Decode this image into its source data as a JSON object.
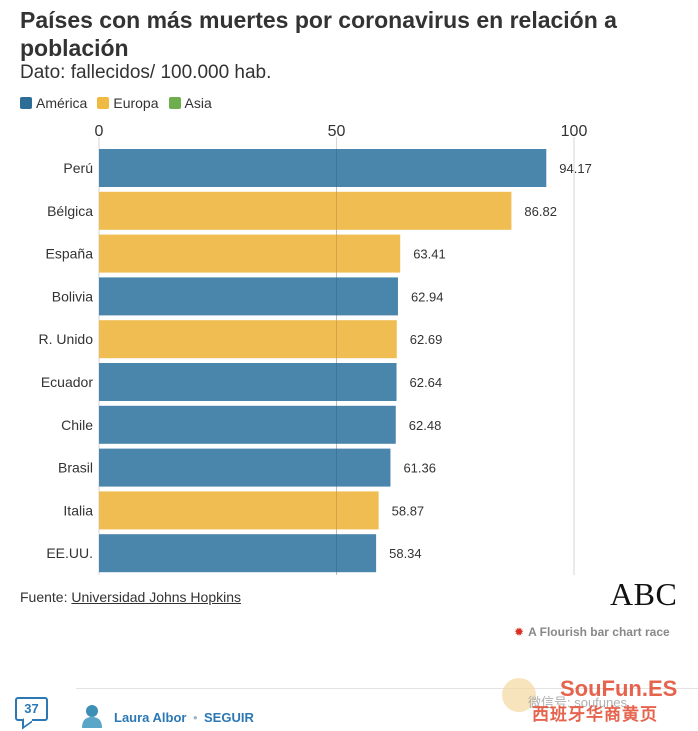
{
  "title": "Países con más muertes por coronavirus en relación a población",
  "subtitle": "Dato: fallecidos/ 100.000 hab.",
  "legend": [
    {
      "label": "América",
      "color": "#2e6d97"
    },
    {
      "label": "Europa",
      "color": "#f0b942"
    },
    {
      "label": "Asia",
      "color": "#6fae4e"
    }
  ],
  "chart_data": {
    "type": "bar",
    "orientation": "horizontal",
    "categories": [
      "Perú",
      "Bélgica",
      "España",
      "Bolivia",
      "R. Unido",
      "Ecuador",
      "Chile",
      "Brasil",
      "Italia",
      "EE.UU."
    ],
    "values": [
      94.17,
      86.82,
      63.41,
      62.94,
      62.69,
      62.64,
      62.48,
      61.36,
      58.87,
      58.34
    ],
    "value_labels": [
      "94.17",
      "86.82",
      "63.41",
      "62.94",
      "62.69",
      "62.64",
      "62.48",
      "61.36",
      "58.87",
      "58.34"
    ],
    "groups": [
      "América",
      "Europa",
      "Europa",
      "América",
      "Europa",
      "América",
      "America",
      "América",
      "Europa",
      "América"
    ],
    "group_colors": {
      "América": "#4a86ab",
      "Europa": "#f0bd52",
      "Asia": "#6fae4e",
      "America": "#4a86ab"
    },
    "xlim": [
      0,
      100
    ],
    "x_ticks": [
      "0",
      "50",
      "100"
    ],
    "x_tick_values": [
      0,
      50,
      100
    ],
    "grid": true,
    "legend_position": "top-left"
  },
  "source": {
    "prefix": "Fuente: ",
    "link": "Universidad Johns Hopkins"
  },
  "brand": "ABC",
  "credit": "A Flourish bar chart race",
  "footer": {
    "comments_count": "37",
    "author": "Laura Albor",
    "separator": "•",
    "follow": "SEGUIR"
  },
  "watermark": {
    "brand": "SouFun.ES",
    "wechat": "微信号: soufunes",
    "sub": "西班牙华商黄页"
  }
}
